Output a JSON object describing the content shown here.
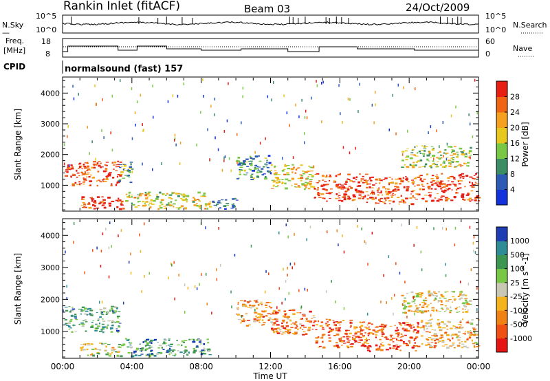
{
  "header": {
    "station": "Rankin Inlet (fitACF)",
    "beam": "Beam 03",
    "date": "24/Oct/2009"
  },
  "noise_panel": {
    "left_label": "N.Sky",
    "right_label": "N.Search",
    "left_ticks": [
      "10^5",
      "10^0"
    ],
    "right_ticks": [
      "10^5",
      "10^0"
    ]
  },
  "freq_panel": {
    "left_label_1": "Freq.",
    "left_label_2": "[MHz]",
    "right_label": "Nave",
    "left_ticks": [
      "18",
      "8"
    ],
    "right_ticks": [
      "60",
      "0"
    ]
  },
  "cpid": {
    "label": "CPID",
    "text": "normalsound (fast) 157"
  },
  "chart_data": [
    {
      "type": "heatmap",
      "name": "power",
      "xlabel": "Time UT",
      "ylabel": "Slant Range [km]",
      "xlim_hours": [
        0,
        24
      ],
      "ylim": [
        180,
        4500
      ],
      "yticks": [
        1000,
        2000,
        3000,
        4000
      ],
      "colorbar": {
        "label": "Power [dB]",
        "ticks": [
          "4",
          "8",
          "12",
          "16",
          "20",
          "24",
          "28"
        ],
        "colors": [
          "#1432dc",
          "#2d5ab4",
          "#3c8c64",
          "#78c846",
          "#e6c81e",
          "#f5a01e",
          "#f06414",
          "#e61e14"
        ]
      },
      "patches": [
        {
          "t": [
            0.1,
            3.3
          ],
          "r": [
            1000,
            1800
          ],
          "level": 0.85
        },
        {
          "t": [
            1.0,
            3.5
          ],
          "r": [
            250,
            650
          ],
          "level": 0.95
        },
        {
          "t": [
            3.2,
            4.0
          ],
          "r": [
            1100,
            1800
          ],
          "level": 0.35
        },
        {
          "t": [
            3.6,
            8.5
          ],
          "r": [
            250,
            800
          ],
          "level": 0.55
        },
        {
          "t": [
            8.5,
            10.0
          ],
          "r": [
            250,
            600
          ],
          "level": 0.25
        },
        {
          "t": [
            10.0,
            12.0
          ],
          "r": [
            1200,
            2000
          ],
          "level": 0.3
        },
        {
          "t": [
            12.0,
            14.5
          ],
          "r": [
            900,
            1700
          ],
          "level": 0.6
        },
        {
          "t": [
            14.5,
            17.5
          ],
          "r": [
            500,
            1400
          ],
          "level": 0.9
        },
        {
          "t": [
            17.5,
            20.5
          ],
          "r": [
            400,
            1300
          ],
          "level": 0.85
        },
        {
          "t": [
            20.5,
            24.0
          ],
          "r": [
            500,
            1400
          ],
          "level": 0.9
        },
        {
          "t": [
            19.5,
            23.5
          ],
          "r": [
            1600,
            2300
          ],
          "level": 0.5
        }
      ]
    },
    {
      "type": "heatmap",
      "name": "velocity",
      "xlabel": "Time UT",
      "ylabel": "Slant Range [km]",
      "xlim_hours": [
        0,
        24
      ],
      "ylim": [
        180,
        4500
      ],
      "yticks": [
        1000,
        2000,
        3000,
        4000
      ],
      "xticks": [
        "00:00",
        "04:00",
        "08:00",
        "12:00",
        "16:00",
        "20:00",
        "00:00"
      ],
      "colorbar": {
        "label": "Velocity [m s^-1]",
        "ticks": [
          "1000",
          "500",
          "100",
          "25",
          "-25",
          "-100",
          "-500",
          "-1000"
        ],
        "colors": [
          "#1e3cb4",
          "#2d8c96",
          "#3c9650",
          "#78c846",
          "#c8c8b4",
          "#f5b41e",
          "#f08214",
          "#f05014",
          "#e61414"
        ]
      },
      "patches": [
        {
          "t": [
            0.1,
            3.3
          ],
          "r": [
            1000,
            1800
          ],
          "level": 0.3
        },
        {
          "t": [
            1.0,
            3.5
          ],
          "r": [
            250,
            650
          ],
          "level": 0.5
        },
        {
          "t": [
            3.6,
            8.5
          ],
          "r": [
            250,
            800
          ],
          "level": 0.25
        },
        {
          "t": [
            10.0,
            12.0
          ],
          "r": [
            1200,
            2000
          ],
          "level": 0.7
        },
        {
          "t": [
            12.0,
            14.5
          ],
          "r": [
            900,
            1700
          ],
          "level": 0.75
        },
        {
          "t": [
            14.5,
            17.5
          ],
          "r": [
            500,
            1400
          ],
          "level": 0.8
        },
        {
          "t": [
            17.5,
            20.5
          ],
          "r": [
            400,
            1300
          ],
          "level": 0.85
        },
        {
          "t": [
            20.5,
            24.0
          ],
          "r": [
            500,
            1400
          ],
          "level": 0.65
        },
        {
          "t": [
            19.5,
            23.5
          ],
          "r": [
            1600,
            2300
          ],
          "level": 0.55
        }
      ]
    }
  ]
}
